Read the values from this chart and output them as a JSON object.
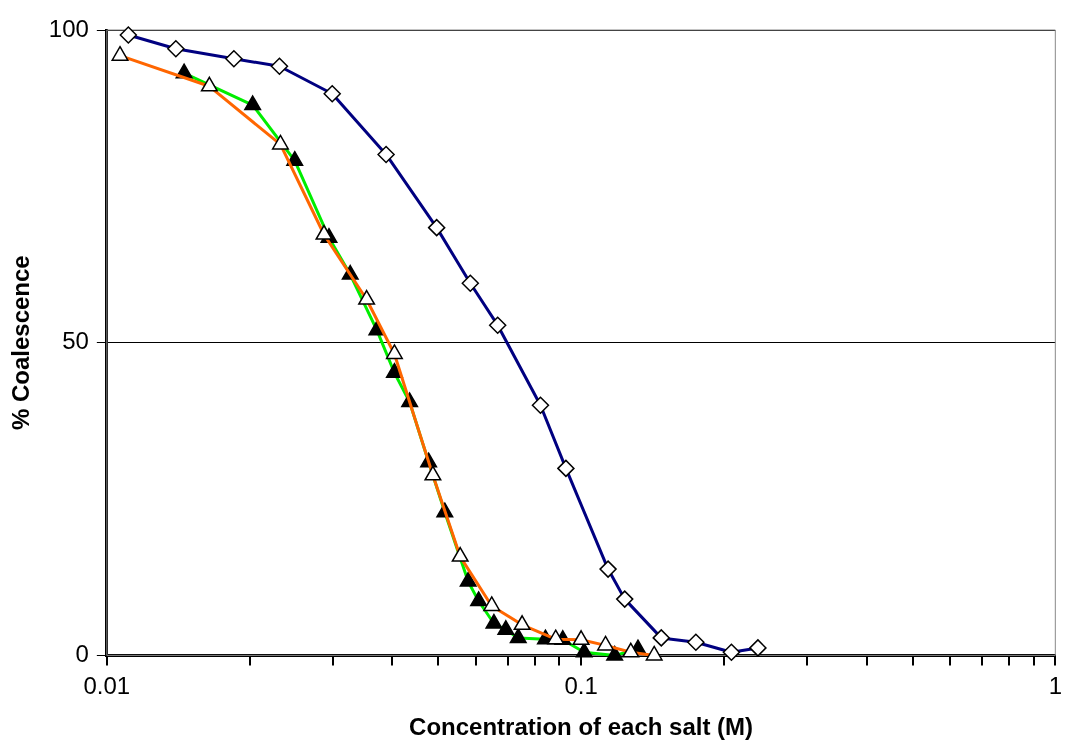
{
  "chart_data": {
    "type": "line",
    "xlabel": "Concentration of each salt (M)",
    "ylabel": "% Coalescence",
    "log": "x",
    "xlim": [
      0.01,
      1
    ],
    "ylim": [
      0,
      100
    ],
    "xticks": [
      {
        "value": 0.01,
        "label": "0.01"
      },
      {
        "value": 0.02,
        "label": null
      },
      {
        "value": 0.03,
        "label": null
      },
      {
        "value": 0.04,
        "label": null
      },
      {
        "value": 0.05,
        "label": null
      },
      {
        "value": 0.06,
        "label": null
      },
      {
        "value": 0.07,
        "label": null
      },
      {
        "value": 0.08,
        "label": null
      },
      {
        "value": 0.09,
        "label": null
      },
      {
        "value": 0.1,
        "label": "0.1"
      },
      {
        "value": 0.2,
        "label": null
      },
      {
        "value": 0.3,
        "label": null
      },
      {
        "value": 0.4,
        "label": null
      },
      {
        "value": 0.5,
        "label": null
      },
      {
        "value": 0.6,
        "label": null
      },
      {
        "value": 0.7,
        "label": null
      },
      {
        "value": 0.8,
        "label": null
      },
      {
        "value": 0.9,
        "label": null
      },
      {
        "value": 1,
        "label": "1"
      }
    ],
    "yticks": [
      0,
      50,
      100
    ],
    "grid": "y",
    "legend": false,
    "line_style": "solid",
    "series": [
      {
        "color": "#000080",
        "marker": "diamond",
        "colors": [
          "#ffffff",
          "#ffffff",
          "#ffffff",
          "#ffffff",
          "#ffffff",
          "#ffffff",
          "#ffffff",
          "#ffffff",
          "#ffffff",
          "#ffffff",
          "#ffffff",
          "#ffffff",
          "#ffffff",
          "#ffffff",
          "#ffffff",
          "#ffffff",
          "#ffffff"
        ],
        "x": [
          0.0111,
          0.01398,
          0.01853,
          0.02312,
          0.02987,
          0.0388,
          0.0496,
          0.0584,
          0.0667,
          0.0821,
          0.0929,
          0.114,
          0.1236,
          0.1476,
          0.1746,
          0.2075,
          0.236
        ],
        "values": [
          99.2,
          97,
          95.4,
          94.2,
          89.8,
          80.1,
          68.4,
          59.5,
          52.8,
          40,
          29.9,
          13.8,
          9,
          2.8,
          2.1,
          0.5,
          1.2
        ]
      },
      {
        "color": "#00ee00",
        "marker": "triangle",
        "colors": [
          "#000000",
          "#000000",
          "#000000",
          "#000000",
          "#000000",
          "#000000",
          "#000000",
          "#000000",
          "#000000",
          "#000000",
          "#000000",
          "#000000",
          "#000000",
          "#000000",
          "#000000",
          "#000000",
          "#000000",
          "#000000",
          "#000000",
          "#000000"
        ],
        "x": [
          0.01455,
          0.0203,
          0.0249,
          0.0294,
          0.0326,
          0.0371,
          0.0404,
          0.0435,
          0.0477,
          0.0516,
          0.0578,
          0.0608,
          0.0655,
          0.0694,
          0.0737,
          0.0841,
          0.0915,
          0.1015,
          0.1177,
          0.1318
        ],
        "values": [
          93.1,
          88,
          79.1,
          66.8,
          60.9,
          52,
          45.2,
          40.5,
          30.9,
          22.9,
          11.8,
          8.7,
          5.1,
          4.1,
          2.8,
          2.6,
          2.5,
          0.5,
          0,
          1
        ]
      },
      {
        "color": "#ff6600",
        "marker": "triangle",
        "colors": [
          "#ffffff",
          "#ffffff",
          "#ffffff",
          "#ffffff",
          "#ffffff",
          "#ffffff",
          "#ffffff",
          "#ffffff",
          "#ffffff",
          "#ffffff",
          "#ffffff",
          "#ffffff",
          "#ffffff",
          "#ffffff",
          "#ffffff"
        ],
        "x": [
          0.01066,
          0.01645,
          0.02323,
          0.0287,
          0.0353,
          0.0404,
          0.0487,
          0.0556,
          0.0648,
          0.0751,
          0.0884,
          0.1,
          0.1126,
          0.1273,
          0.1426
        ],
        "values": [
          95.9,
          91,
          81.7,
          67.3,
          56.9,
          48.2,
          28.8,
          15.8,
          7.9,
          4.9,
          2.6,
          2.5,
          1.6,
          0.5,
          0
        ]
      }
    ]
  }
}
